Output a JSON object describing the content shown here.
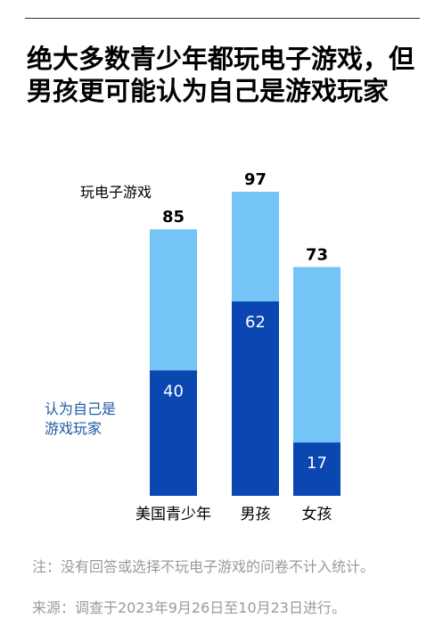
{
  "chart_data": {
    "type": "overlap_bar",
    "title": "绝大多数青少年都玩电子游戏，但男孩更可能认为自己是游戏玩家",
    "categories": [
      "美国青少年",
      "男孩",
      "女孩"
    ],
    "series": [
      {
        "name": "玩电子游戏",
        "color": "#74c4f8",
        "values": [
          85,
          97,
          73
        ]
      },
      {
        "name": "认为自己是游戏玩家",
        "color": "#0a47b0",
        "values": [
          40,
          62,
          17
        ]
      }
    ],
    "notes": [
      "注：没有回答或选择不玩电子游戏的问卷不计入统计。",
      "来源：调查于2023年9月26日至10月23日进行。"
    ]
  }
}
